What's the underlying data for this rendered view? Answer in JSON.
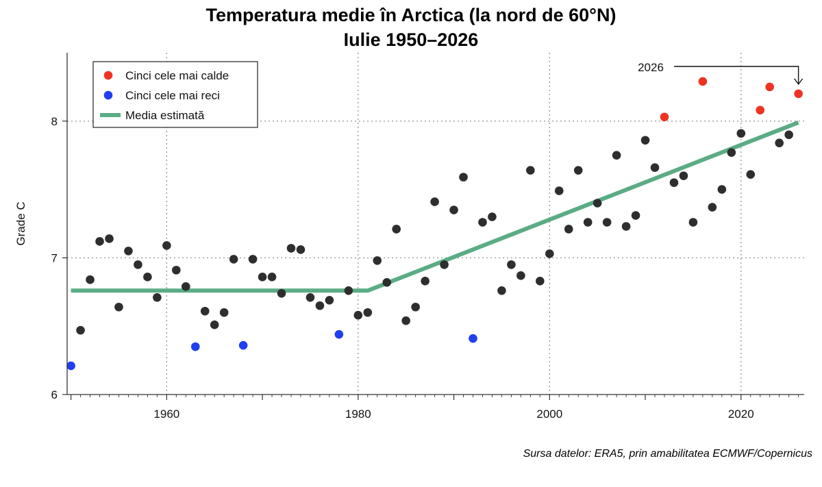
{
  "chart_data": {
    "type": "scatter",
    "title": [
      "Temperatura medie în Arctica (la nord de 60°N)",
      "Iulie 1950–2026"
    ],
    "xlabel": "",
    "ylabel": "Grade C",
    "xlim": [
      1949.6,
      2026.6
    ],
    "ylim": [
      6,
      8.5
    ],
    "xticks": [
      1960,
      1980,
      2000,
      2020
    ],
    "yticks": [
      6,
      7,
      8
    ],
    "grid": true,
    "legend_position": "top-left",
    "source": "Sursa datelor: ERA5, prin amabilitatea ECMWF/Copernicus",
    "annotation": {
      "text": "2026",
      "x": 2026,
      "y": 8.2
    },
    "colors": {
      "warm": "#ee3322",
      "cold": "#1f3ff0",
      "other": "#2e2e2e",
      "trend": "#5aac84",
      "grid": "#999999"
    },
    "legend": [
      {
        "label": "Cinci cele mai calde",
        "kind": "warm"
      },
      {
        "label": "Cinci cele mai reci",
        "kind": "cold"
      },
      {
        "label": "Media estimată",
        "kind": "trend"
      }
    ],
    "trend": {
      "x": [
        1950,
        1981,
        2026
      ],
      "y": [
        6.76,
        6.76,
        7.99
      ]
    },
    "series": [
      {
        "category": "other",
        "points": [
          [
            1951,
            6.47
          ],
          [
            1952,
            6.84
          ],
          [
            1953,
            7.12
          ],
          [
            1954,
            7.14
          ],
          [
            1955,
            6.64
          ],
          [
            1956,
            7.05
          ],
          [
            1957,
            6.95
          ],
          [
            1958,
            6.86
          ],
          [
            1959,
            6.71
          ],
          [
            1960,
            7.09
          ],
          [
            1961,
            6.91
          ],
          [
            1962,
            6.79
          ],
          [
            1964,
            6.61
          ],
          [
            1965,
            6.51
          ],
          [
            1966,
            6.6
          ],
          [
            1967,
            6.99
          ],
          [
            1969,
            6.99
          ],
          [
            1970,
            6.86
          ],
          [
            1971,
            6.86
          ],
          [
            1972,
            6.74
          ],
          [
            1973,
            7.07
          ],
          [
            1974,
            7.06
          ],
          [
            1975,
            6.71
          ],
          [
            1976,
            6.65
          ],
          [
            1977,
            6.69
          ],
          [
            1979,
            6.76
          ],
          [
            1980,
            6.58
          ],
          [
            1981,
            6.6
          ],
          [
            1982,
            6.98
          ],
          [
            1983,
            6.82
          ],
          [
            1984,
            7.21
          ],
          [
            1985,
            6.54
          ],
          [
            1986,
            6.64
          ],
          [
            1987,
            6.83
          ],
          [
            1988,
            7.41
          ],
          [
            1989,
            6.95
          ],
          [
            1990,
            7.35
          ],
          [
            1991,
            7.59
          ],
          [
            1993,
            7.26
          ],
          [
            1994,
            7.3
          ],
          [
            1995,
            6.76
          ],
          [
            1996,
            6.95
          ],
          [
            1997,
            6.87
          ],
          [
            1998,
            7.64
          ],
          [
            1999,
            6.83
          ],
          [
            2000,
            7.03
          ],
          [
            2001,
            7.49
          ],
          [
            2002,
            7.21
          ],
          [
            2003,
            7.64
          ],
          [
            2004,
            7.26
          ],
          [
            2005,
            7.4
          ],
          [
            2006,
            7.26
          ],
          [
            2007,
            7.75
          ],
          [
            2008,
            7.23
          ],
          [
            2009,
            7.31
          ],
          [
            2010,
            7.86
          ],
          [
            2011,
            7.66
          ],
          [
            2013,
            7.55
          ],
          [
            2014,
            7.6
          ],
          [
            2015,
            7.26
          ],
          [
            2017,
            7.37
          ],
          [
            2018,
            7.5
          ],
          [
            2019,
            7.77
          ],
          [
            2020,
            7.91
          ],
          [
            2021,
            7.61
          ],
          [
            2024,
            7.84
          ],
          [
            2025,
            7.9
          ]
        ]
      },
      {
        "category": "cold",
        "points": [
          [
            1950,
            6.21
          ],
          [
            1963,
            6.35
          ],
          [
            1968,
            6.36
          ],
          [
            1978,
            6.44
          ],
          [
            1992,
            6.41
          ]
        ]
      },
      {
        "category": "warm",
        "points": [
          [
            2012,
            8.03
          ],
          [
            2016,
            8.29
          ],
          [
            2022,
            8.08
          ],
          [
            2023,
            8.25
          ],
          [
            2026,
            8.2
          ]
        ]
      }
    ]
  }
}
